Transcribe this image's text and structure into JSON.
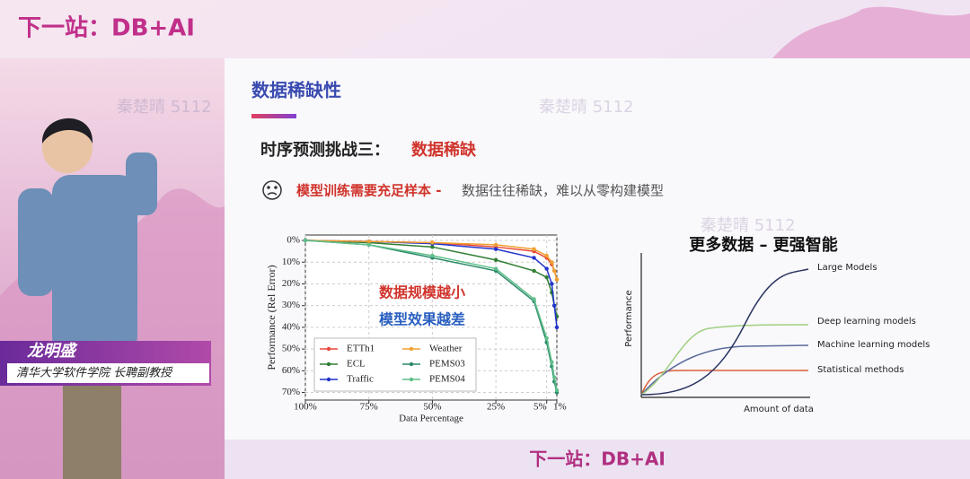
{
  "header": {
    "logo": "下一站：DB+AI"
  },
  "watermark": "秦楚晴 5112",
  "speaker": {
    "name": "龙明盛",
    "affiliation": "清华大学软件学院 长聘副教授"
  },
  "slide": {
    "title": "数据稀缺性",
    "heading": "时序预测挑战三：",
    "heading_highlight": "数据稀缺",
    "bullet_highlight": "模型训练需要充足样本 -",
    "bullet": "数据往往稀缺，难以从零构建模型"
  },
  "chart_data": {
    "type": "line",
    "x_label": "Data Percentage",
    "y_label": "Performance (Rel Error)",
    "annotations": [
      "数据规模越小",
      "模型效果越差"
    ],
    "x": [
      100,
      75,
      50,
      25,
      10,
      5,
      3,
      2,
      1
    ],
    "xlim": [
      100,
      1
    ],
    "xticks": [
      {
        "value": 100,
        "label": "100%"
      },
      {
        "value": 75,
        "label": "75%"
      },
      {
        "value": 50,
        "label": "50%"
      },
      {
        "value": 25,
        "label": "25%"
      },
      {
        "value": 5,
        "label": "5%"
      },
      {
        "value": 1,
        "label": "1%"
      }
    ],
    "ylim": [
      -2.5,
      73.5
    ],
    "yticks": [
      {
        "value": 0,
        "label": "0%"
      },
      {
        "value": 10,
        "label": "10%"
      },
      {
        "value": 20,
        "label": "20%"
      },
      {
        "value": 30,
        "label": "30%"
      },
      {
        "value": 40,
        "label": "40%"
      },
      {
        "value": 50,
        "label": "50%"
      },
      {
        "value": 60,
        "label": "60%"
      },
      {
        "value": 70,
        "label": "70%"
      }
    ],
    "grid": true,
    "legend": "lower left",
    "series": [
      {
        "name": "ETTh1",
        "color": "#e8483a",
        "values": [
          0,
          0.5,
          1,
          3,
          5,
          8,
          11,
          14,
          18
        ]
      },
      {
        "name": "ECL",
        "color": "#2e7d32",
        "values": [
          0,
          1,
          3,
          9,
          14,
          17,
          24,
          30,
          35
        ]
      },
      {
        "name": "Traffic",
        "color": "#2233cc",
        "values": [
          0,
          0.5,
          1.5,
          4,
          8,
          13,
          20,
          30,
          40
        ]
      },
      {
        "name": "Weather",
        "color": "#f0a030",
        "values": [
          0,
          0.5,
          1,
          2,
          4,
          7,
          10,
          14,
          18
        ]
      },
      {
        "name": "PEMS03",
        "color": "#2a8a6a",
        "values": [
          0,
          2,
          8,
          14,
          28,
          47,
          58,
          65,
          70
        ]
      },
      {
        "name": "PEMS04",
        "color": "#5fbf8a",
        "values": [
          0,
          2,
          7,
          13,
          27,
          45,
          56,
          63,
          69
        ]
      }
    ]
  },
  "diagram": {
    "title": "更多数据 – 更强智能",
    "y_label": "Performance",
    "x_label": "Amount of data",
    "curves": [
      {
        "label": "Large Models"
      },
      {
        "label": "Deep learning models"
      },
      {
        "label": "Machine learning models"
      },
      {
        "label": "Statistical methods"
      }
    ]
  },
  "footer": {
    "logo": "下一站：DB+AI"
  }
}
